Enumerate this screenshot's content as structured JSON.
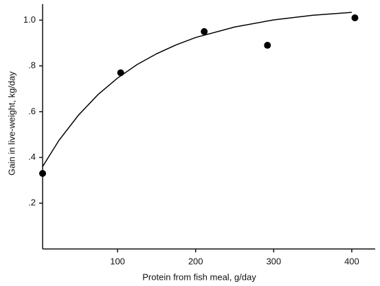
{
  "chart_data": {
    "type": "scatter",
    "x_label": "Protein from fish meal, g/day",
    "y_label": "Gain in live-weight, kg/day",
    "xlim": [
      4,
      430
    ],
    "ylim": [
      0,
      1.07
    ],
    "xticks": [
      100,
      200,
      300,
      400
    ],
    "yticks": [
      {
        "value": 0.2,
        "label": ".2"
      },
      {
        "value": 0.4,
        "label": ".4"
      },
      {
        "value": 0.6,
        "label": ".6"
      },
      {
        "value": 0.8,
        "label": ".8"
      },
      {
        "value": 1.0,
        "label": "1.0"
      }
    ],
    "grid": false,
    "series": [
      {
        "type": "scatter",
        "color": "#000000",
        "x": [
          4,
          104,
          211,
          292,
          404
        ],
        "values": [
          0.33,
          0.77,
          0.95,
          0.89,
          1.01
        ]
      },
      {
        "type": "line",
        "color": "#000000",
        "x": [
          4,
          25,
          50,
          75,
          100,
          125,
          150,
          175,
          200,
          250,
          300,
          350,
          400
        ],
        "values": [
          0.36,
          0.475,
          0.585,
          0.675,
          0.747,
          0.806,
          0.853,
          0.892,
          0.924,
          0.97,
          1.001,
          1.021,
          1.034
        ]
      }
    ]
  }
}
